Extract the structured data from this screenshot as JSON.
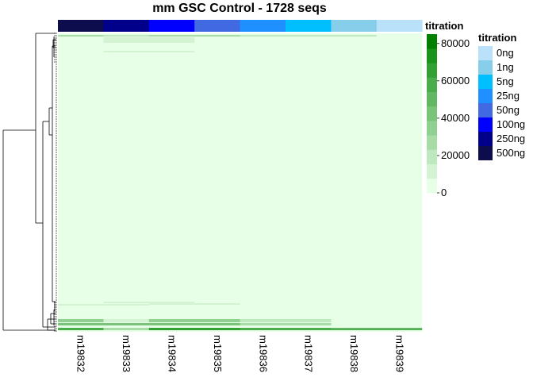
{
  "chart_data": {
    "type": "heatmap",
    "title": "mm GSC Control - 1728 seqs",
    "columns": [
      "m19832",
      "m19833",
      "m19834",
      "m19835",
      "m19836",
      "m19837",
      "m19838",
      "m19839"
    ],
    "annotation": {
      "name": "titration",
      "column_values": [
        "500ng",
        "250ng",
        "100ng",
        "50ng",
        "25ng",
        "5ng",
        "1ng",
        "0ng"
      ],
      "legend_title": "titration",
      "levels": [
        {
          "label": "0ng",
          "color": "#B9E2FA"
        },
        {
          "label": "1ng",
          "color": "#87CEEB"
        },
        {
          "label": "5ng",
          "color": "#00BFFF"
        },
        {
          "label": "25ng",
          "color": "#1E90FF"
        },
        {
          "label": "50ng",
          "color": "#4169E1"
        },
        {
          "label": "100ng",
          "color": "#0000FF"
        },
        {
          "label": "250ng",
          "color": "#00008B"
        },
        {
          "label": "500ng",
          "color": "#0D0D4D"
        }
      ]
    },
    "value_scale": {
      "min": 0,
      "max": 85000,
      "ticks": [
        0,
        20000,
        40000,
        60000,
        80000
      ],
      "colors": [
        "#E6FFE6",
        "#D3F3D3",
        "#BEE8BE",
        "#A7DCA7",
        "#90D090",
        "#79C479",
        "#62B862",
        "#4AAC4A",
        "#32A032",
        "#1A941A",
        "#008000"
      ]
    },
    "row_count": 1728
  }
}
